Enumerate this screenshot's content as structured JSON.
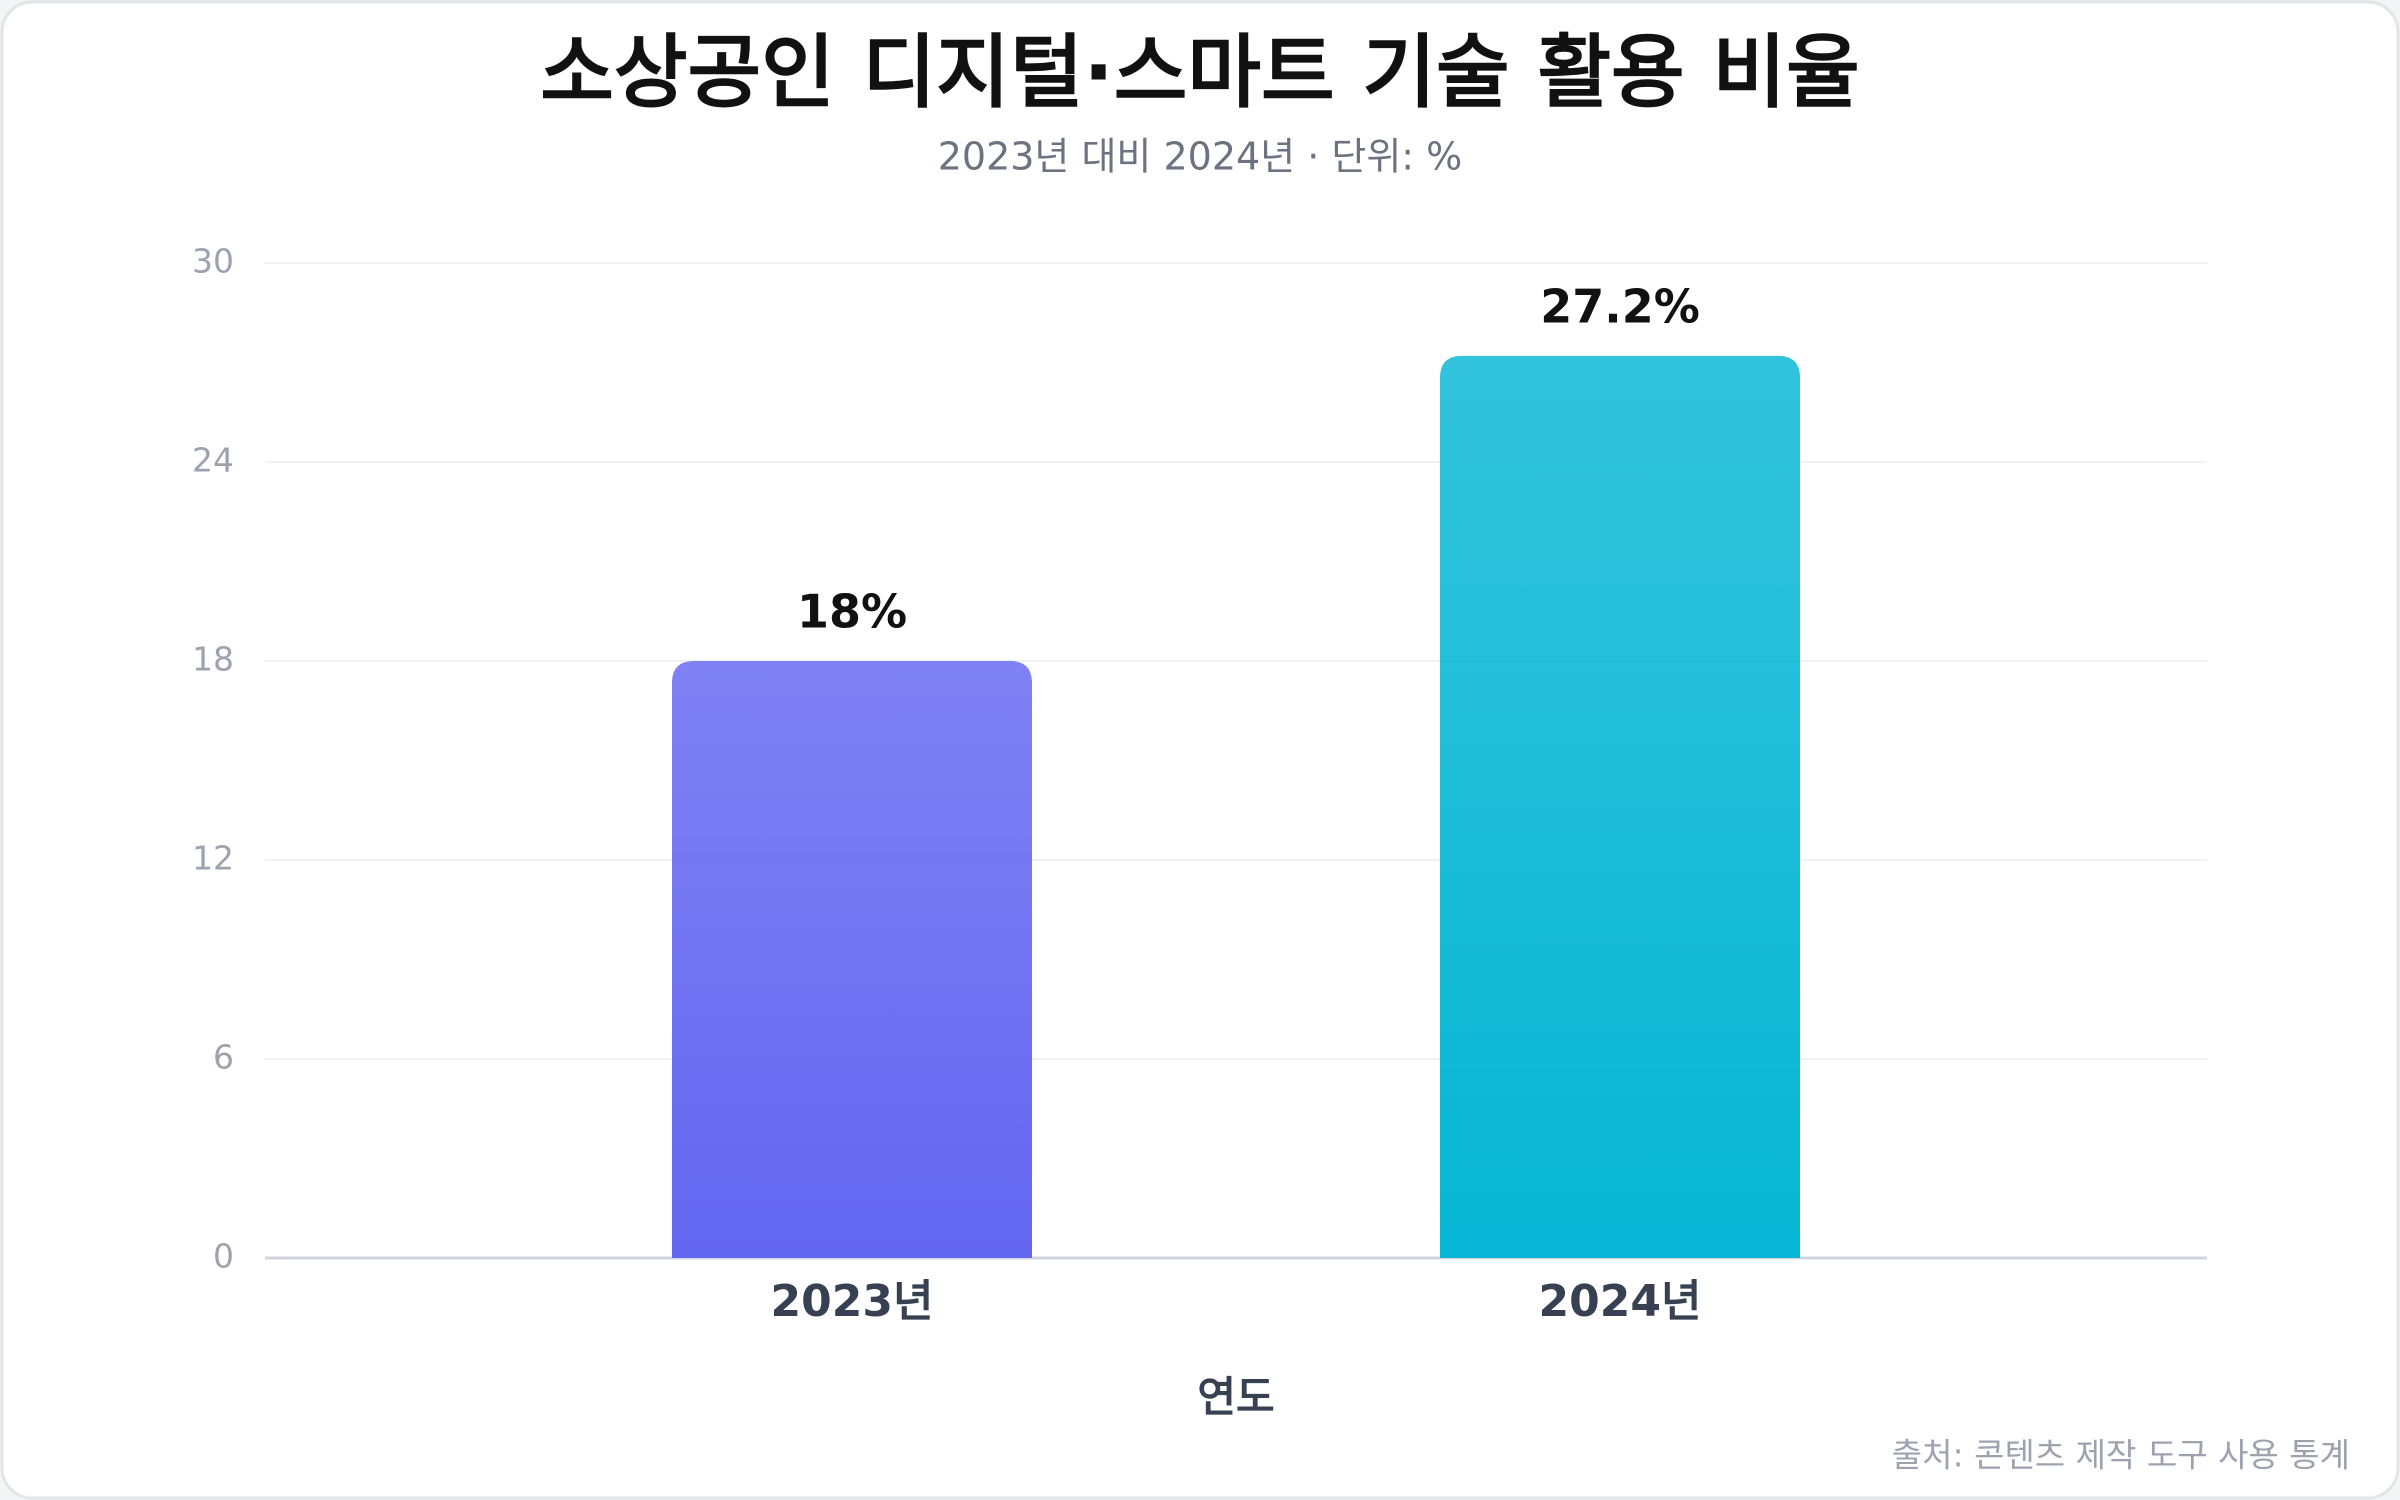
{
  "chart_data": {
    "type": "bar",
    "title": "소상공인 디지털·스마트 기술 활용 비율",
    "subtitle": "2023년 대비 2024년 · 단위: %",
    "x_label": "연도",
    "source": "출처: 콘텐츠 제작 도구 사용 통계",
    "categories": [
      "2023년",
      "2024년"
    ],
    "values": [
      18,
      27.2
    ],
    "value_labels": [
      "18%",
      "27.2%"
    ],
    "colors": [
      "#6366f1",
      "#06b6d4"
    ],
    "ylim": [
      0,
      30
    ],
    "yticks": [
      0,
      6,
      12,
      18,
      24,
      30
    ],
    "grid": true
  }
}
